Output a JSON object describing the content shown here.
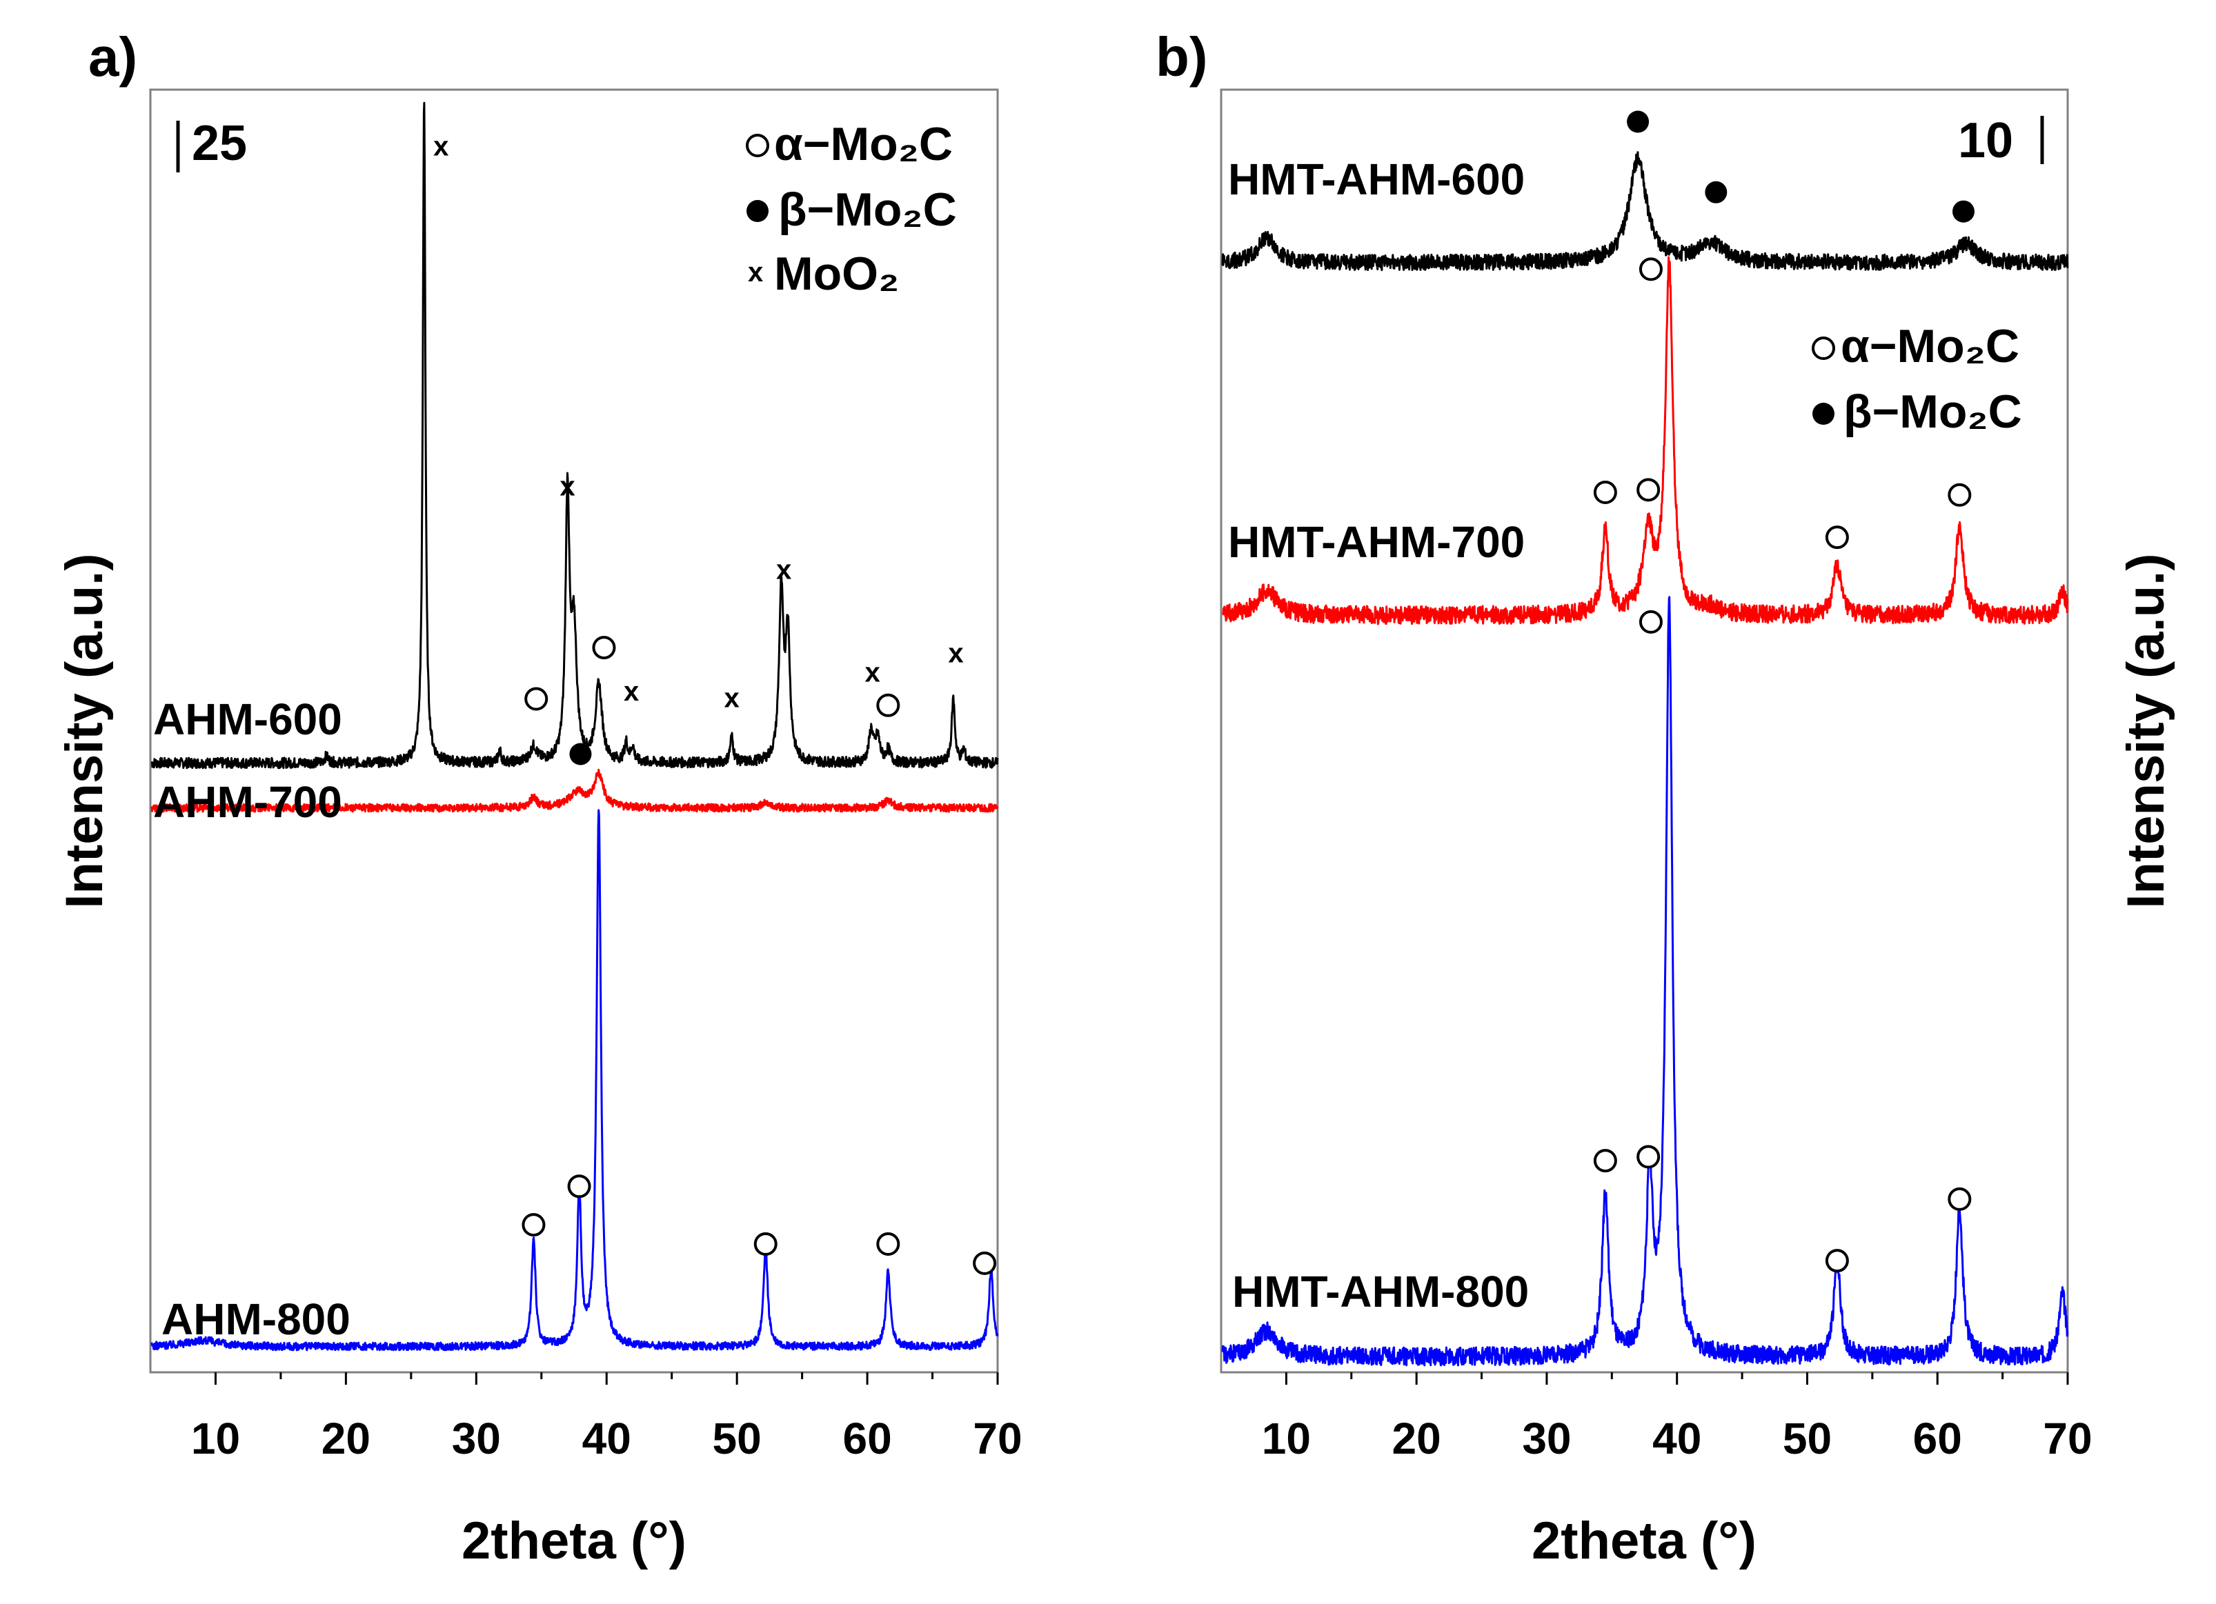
{
  "chart_data": [
    {
      "type": "line",
      "panel_label": "a)",
      "xlabel": "2theta (°)",
      "ylabel": "Intensity (a.u.)",
      "xlim": [
        5,
        70
      ],
      "xticks": [
        10,
        20,
        30,
        40,
        50,
        60,
        70
      ],
      "ylim": [
        0,
        1
      ],
      "scale_bar_label": "25",
      "legend": [
        {
          "marker": "open-circle",
          "label": "α−Mo₂C"
        },
        {
          "marker": "filled-circle",
          "label": "β−Mo₂C"
        },
        {
          "marker": "x",
          "label": "MoO₂"
        }
      ],
      "series": [
        {
          "name": "AHM-600",
          "color": "#000000",
          "baseline": 0.475,
          "noise": 0.004,
          "peaks": [
            [
              26.0,
              0.52,
              0.12
            ],
            [
              37.0,
              0.205,
              0.18
            ],
            [
              37.5,
              0.1,
              0.25
            ],
            [
              39.4,
              0.06,
              0.3
            ],
            [
              34.4,
              0.012,
              0.3
            ],
            [
              41.5,
              0.015,
              0.15
            ],
            [
              42.0,
              0.012,
              0.15
            ],
            [
              49.6,
              0.02,
              0.15
            ],
            [
              53.4,
              0.13,
              0.2
            ],
            [
              53.9,
              0.1,
              0.2
            ],
            [
              60.3,
              0.025,
              0.2
            ],
            [
              60.8,
              0.02,
              0.2
            ],
            [
              61.6,
              0.01,
              0.2
            ],
            [
              66.6,
              0.05,
              0.15
            ],
            [
              31.8,
              0.01,
              0.12
            ],
            [
              67.4,
              0.01,
              0.15
            ],
            [
              18.5,
              0.005,
              0.2
            ]
          ],
          "markers": [
            {
              "type": "x",
              "x": 27.3,
              "y": 0.955
            },
            {
              "type": "x",
              "x": 37.0,
              "y": 0.69
            },
            {
              "type": "open-circle",
              "x": 34.6,
              "y": 0.525
            },
            {
              "type": "open-circle",
              "x": 39.8,
              "y": 0.565
            },
            {
              "type": "x",
              "x": 41.9,
              "y": 0.53
            },
            {
              "type": "x",
              "x": 49.6,
              "y": 0.525
            },
            {
              "type": "x",
              "x": 53.6,
              "y": 0.625
            },
            {
              "type": "x",
              "x": 60.4,
              "y": 0.545
            },
            {
              "type": "open-circle",
              "x": 61.6,
              "y": 0.52
            },
            {
              "type": "x",
              "x": 66.8,
              "y": 0.56
            }
          ]
        },
        {
          "name": "AHM-700",
          "color": "#ff0000",
          "baseline": 0.44,
          "noise": 0.003,
          "peaks": [
            [
              34.4,
              0.008,
              0.3
            ],
            [
              37.8,
              0.012,
              0.8
            ],
            [
              39.4,
              0.025,
              0.4
            ],
            [
              52.2,
              0.004,
              0.4
            ],
            [
              61.6,
              0.006,
              0.4
            ]
          ],
          "markers": [
            {
              "type": "filled-circle",
              "x": 38.0,
              "y": 0.482
            }
          ]
        },
        {
          "name": "AHM-800",
          "color": "#0000ff",
          "baseline": 0.02,
          "noise": 0.003,
          "peaks": [
            [
              34.4,
              0.085,
              0.18
            ],
            [
              37.9,
              0.12,
              0.18
            ],
            [
              39.4,
              0.42,
              0.2
            ],
            [
              52.2,
              0.075,
              0.2
            ],
            [
              61.6,
              0.06,
              0.2
            ],
            [
              69.5,
              0.06,
              0.2
            ],
            [
              9.0,
              0.005,
              1.5
            ]
          ],
          "markers": [
            {
              "type": "open-circle",
              "x": 34.4,
              "y": 0.115
            },
            {
              "type": "open-circle",
              "x": 37.9,
              "y": 0.145
            },
            {
              "type": "open-circle",
              "x": 52.2,
              "y": 0.1
            },
            {
              "type": "open-circle",
              "x": 61.6,
              "y": 0.1
            },
            {
              "type": "open-circle",
              "x": 69.0,
              "y": 0.085
            }
          ]
        }
      ]
    },
    {
      "type": "line",
      "panel_label": "b)",
      "xlabel": "2theta (°)",
      "ylabel": "Intensity (a.u.)",
      "xlim": [
        5,
        70
      ],
      "xticks": [
        10,
        20,
        30,
        40,
        50,
        60,
        70
      ],
      "ylim": [
        0,
        1
      ],
      "scale_bar_label": "10",
      "legend": [
        {
          "marker": "open-circle",
          "label": "α−Mo₂C"
        },
        {
          "marker": "filled-circle",
          "label": "β−Mo₂C"
        }
      ],
      "series": [
        {
          "name": "HMT-AHM-600",
          "color": "#000000",
          "baseline": 0.865,
          "noise": 0.006,
          "peaks": [
            [
              37.0,
              0.08,
              0.8
            ],
            [
              42.6,
              0.015,
              1.2
            ],
            [
              62.2,
              0.015,
              0.9
            ],
            [
              8.5,
              0.02,
              0.8
            ]
          ],
          "markers": [
            {
              "type": "filled-circle",
              "x": 37.0,
              "y": 0.975
            },
            {
              "type": "filled-circle",
              "x": 43.0,
              "y": 0.92
            },
            {
              "type": "filled-circle",
              "x": 62.0,
              "y": 0.905
            },
            {
              "type": "open-circle",
              "x": 38.0,
              "y": 0.86
            }
          ]
        },
        {
          "name": "HMT-AHM-700",
          "color": "#ff0000",
          "baseline": 0.59,
          "noise": 0.007,
          "peaks": [
            [
              34.5,
              0.065,
              0.3
            ],
            [
              37.8,
              0.06,
              0.5
            ],
            [
              39.4,
              0.27,
              0.35
            ],
            [
              52.3,
              0.04,
              0.35
            ],
            [
              61.7,
              0.07,
              0.35
            ],
            [
              69.6,
              0.02,
              0.3
            ],
            [
              8.5,
              0.02,
              0.9
            ],
            [
              42.6,
              0.005,
              0.8
            ]
          ],
          "markers": [
            {
              "type": "open-circle",
              "x": 34.5,
              "y": 0.686
            },
            {
              "type": "open-circle",
              "x": 37.8,
              "y": 0.688
            },
            {
              "type": "open-circle",
              "x": 52.3,
              "y": 0.651
            },
            {
              "type": "open-circle",
              "x": 61.7,
              "y": 0.684
            }
          ]
        },
        {
          "name": "HMT-AHM-800",
          "color": "#0000ff",
          "baseline": 0.012,
          "noise": 0.007,
          "peaks": [
            [
              34.5,
              0.125,
              0.3
            ],
            [
              37.9,
              0.135,
              0.3
            ],
            [
              39.4,
              0.585,
              0.3
            ],
            [
              52.3,
              0.075,
              0.3
            ],
            [
              61.7,
              0.115,
              0.3
            ],
            [
              69.6,
              0.05,
              0.3
            ],
            [
              8.5,
              0.02,
              1.0
            ]
          ],
          "markers": [
            {
              "type": "open-circle",
              "x": 38.0,
              "y": 0.585
            },
            {
              "type": "open-circle",
              "x": 34.5,
              "y": 0.165
            },
            {
              "type": "open-circle",
              "x": 37.8,
              "y": 0.168
            },
            {
              "type": "open-circle",
              "x": 52.3,
              "y": 0.087
            },
            {
              "type": "open-circle",
              "x": 61.7,
              "y": 0.135
            }
          ]
        }
      ]
    }
  ]
}
